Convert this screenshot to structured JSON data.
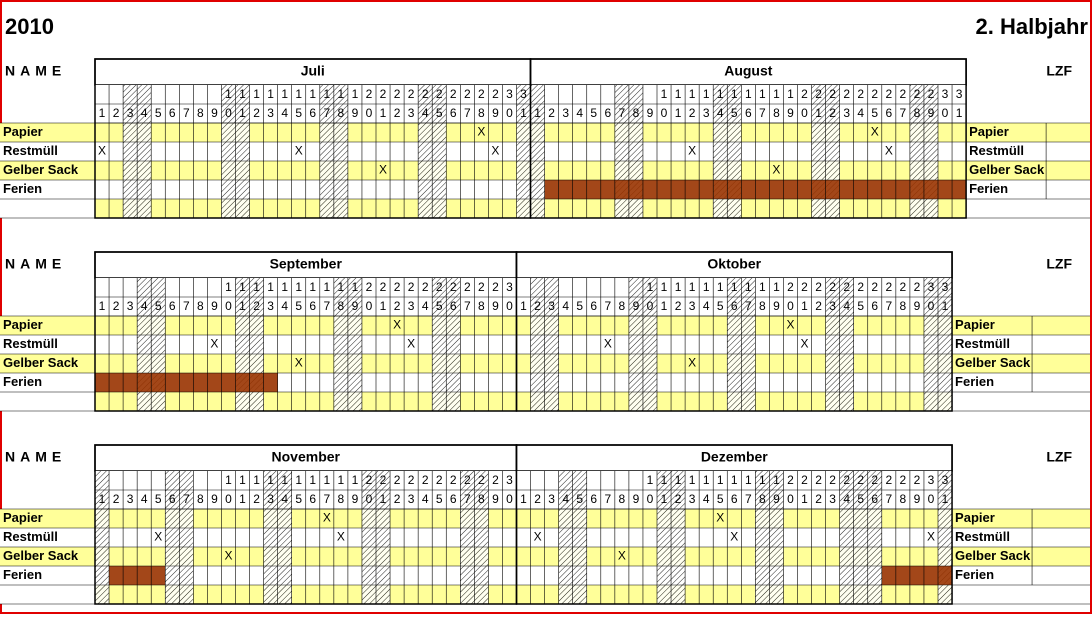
{
  "header": {
    "year": "2010",
    "period": "2. Halbjahr"
  },
  "mark_symbol": "X",
  "blocks": [
    {
      "name_label": "NAME",
      "lzf": "LZF",
      "rows": [
        "Papier",
        "Restmüll",
        "Gelber Sack",
        "Ferien"
      ],
      "months": [
        {
          "name": "Juli",
          "days": [
            1,
            2,
            3,
            4,
            5,
            6,
            7,
            8,
            9,
            10,
            11,
            12,
            13,
            14,
            15,
            16,
            17,
            18,
            19,
            20,
            21,
            22,
            23,
            24,
            25,
            26,
            27,
            28,
            29,
            30,
            31
          ],
          "weekends": [
            3,
            4,
            10,
            11,
            17,
            18,
            24,
            25,
            31
          ],
          "marks": [
            [
              28
            ],
            [
              1,
              15,
              29
            ],
            [
              21
            ]
          ],
          "ferien": []
        },
        {
          "name": "August",
          "days": [
            1,
            2,
            3,
            4,
            5,
            6,
            7,
            8,
            9,
            10,
            11,
            12,
            13,
            14,
            15,
            16,
            17,
            18,
            19,
            20,
            21,
            22,
            23,
            24,
            25,
            26,
            27,
            28,
            29,
            30,
            31
          ],
          "weekends": [
            1,
            7,
            8,
            14,
            15,
            21,
            22,
            28,
            29
          ],
          "marks": [
            [
              25
            ],
            [
              12,
              26
            ],
            [
              18
            ]
          ],
          "ferien": [
            [
              2,
              31
            ]
          ]
        }
      ]
    },
    {
      "name_label": "NAME",
      "lzf": "LZF",
      "rows": [
        "Papier",
        "Restmüll",
        "Gelber Sack",
        "Ferien"
      ],
      "months": [
        {
          "name": "September",
          "days": [
            1,
            2,
            3,
            4,
            5,
            6,
            7,
            8,
            9,
            10,
            11,
            12,
            13,
            14,
            15,
            16,
            17,
            18,
            19,
            20,
            21,
            22,
            23,
            24,
            25,
            26,
            27,
            28,
            29,
            30
          ],
          "weekends": [
            4,
            5,
            11,
            12,
            18,
            19,
            25,
            26
          ],
          "marks": [
            [
              22
            ],
            [
              9,
              23
            ],
            [
              15
            ]
          ],
          "ferien": [
            [
              1,
              13
            ]
          ]
        },
        {
          "name": "Oktober",
          "days": [
            1,
            2,
            3,
            4,
            5,
            6,
            7,
            8,
            9,
            10,
            11,
            12,
            13,
            14,
            15,
            16,
            17,
            18,
            19,
            20,
            21,
            22,
            23,
            24,
            25,
            26,
            27,
            28,
            29,
            30,
            31
          ],
          "weekends": [
            2,
            3,
            9,
            10,
            16,
            17,
            23,
            24,
            30,
            31
          ],
          "marks": [
            [
              20
            ],
            [
              7,
              21
            ],
            [
              13
            ]
          ],
          "ferien": []
        }
      ]
    },
    {
      "name_label": "NAME",
      "lzf": "LZF",
      "rows": [
        "Papier",
        "Restmüll",
        "Gelber Sack",
        "Ferien"
      ],
      "months": [
        {
          "name": "November",
          "days": [
            1,
            2,
            3,
            4,
            5,
            6,
            7,
            8,
            9,
            10,
            11,
            12,
            13,
            14,
            15,
            16,
            17,
            18,
            19,
            20,
            21,
            22,
            23,
            24,
            25,
            26,
            27,
            28,
            29,
            30
          ],
          "weekends": [
            1,
            6,
            7,
            13,
            14,
            20,
            21,
            27,
            28
          ],
          "marks": [
            [
              17
            ],
            [
              5,
              18
            ],
            [
              10
            ]
          ],
          "ferien": [
            [
              2,
              5
            ]
          ]
        },
        {
          "name": "Dezember",
          "days": [
            1,
            2,
            3,
            4,
            5,
            6,
            7,
            8,
            9,
            10,
            11,
            12,
            13,
            14,
            15,
            16,
            17,
            18,
            19,
            20,
            21,
            22,
            23,
            24,
            25,
            26,
            27,
            28,
            29,
            30,
            31
          ],
          "weekends": [
            4,
            5,
            11,
            12,
            18,
            19,
            24,
            25,
            26,
            31
          ],
          "marks": [
            [
              15
            ],
            [
              2,
              16,
              30
            ],
            [
              8
            ]
          ],
          "ferien": [
            [
              27,
              31
            ]
          ]
        }
      ]
    }
  ]
}
